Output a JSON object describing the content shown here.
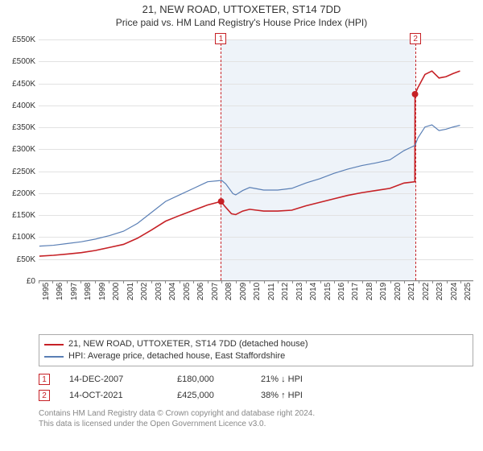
{
  "title": {
    "main": "21, NEW ROAD, UTTOXETER, ST14 7DD",
    "sub": "Price paid vs. HM Land Registry's House Price Index (HPI)"
  },
  "chart": {
    "type": "line",
    "background_color": "#ffffff",
    "grid_color": "#e2e2e2",
    "shade_color": "#eef3f9",
    "x": {
      "min": 1995,
      "max": 2025.9,
      "ticks": [
        1995,
        1996,
        1997,
        1998,
        1999,
        2000,
        2001,
        2002,
        2003,
        2004,
        2005,
        2006,
        2007,
        2008,
        2009,
        2010,
        2011,
        2012,
        2013,
        2014,
        2015,
        2016,
        2017,
        2018,
        2019,
        2020,
        2021,
        2022,
        2023,
        2024,
        2025
      ]
    },
    "y": {
      "min": 0,
      "max": 550000,
      "tick_step": 50000,
      "labels": [
        "£0",
        "£50K",
        "£100K",
        "£150K",
        "£200K",
        "£250K",
        "£300K",
        "£350K",
        "£400K",
        "£450K",
        "£500K",
        "£550K"
      ]
    },
    "shade_range": [
      2007.96,
      2021.79
    ],
    "series": [
      {
        "id": "price_paid",
        "label": "21, NEW ROAD, UTTOXETER, ST14 7DD (detached house)",
        "color": "#c62126",
        "width": 1.6,
        "data": [
          [
            1995,
            55000
          ],
          [
            1996,
            57000
          ],
          [
            1997,
            60000
          ],
          [
            1998,
            63000
          ],
          [
            1999,
            68000
          ],
          [
            2000,
            75000
          ],
          [
            2001,
            82000
          ],
          [
            2002,
            96000
          ],
          [
            2003,
            115000
          ],
          [
            2004,
            135000
          ],
          [
            2005,
            148000
          ],
          [
            2006,
            160000
          ],
          [
            2007,
            172000
          ],
          [
            2007.96,
            180000
          ],
          [
            2008.2,
            170000
          ],
          [
            2008.7,
            152000
          ],
          [
            2009,
            150000
          ],
          [
            2009.5,
            158000
          ],
          [
            2010,
            162000
          ],
          [
            2010.5,
            160000
          ],
          [
            2011,
            158000
          ],
          [
            2012,
            158000
          ],
          [
            2013,
            160000
          ],
          [
            2014,
            170000
          ],
          [
            2015,
            178000
          ],
          [
            2016,
            186000
          ],
          [
            2017,
            194000
          ],
          [
            2018,
            200000
          ],
          [
            2019,
            205000
          ],
          [
            2020,
            210000
          ],
          [
            2021,
            222000
          ],
          [
            2021.78,
            225000
          ],
          [
            2021.79,
            425000
          ],
          [
            2022,
            440000
          ],
          [
            2022.5,
            470000
          ],
          [
            2023,
            478000
          ],
          [
            2023.5,
            462000
          ],
          [
            2024,
            465000
          ],
          [
            2024.5,
            472000
          ],
          [
            2025,
            478000
          ]
        ]
      },
      {
        "id": "hpi",
        "label": "HPI: Average price, detached house, East Staffordshire",
        "color": "#5a7fb5",
        "width": 1.2,
        "data": [
          [
            1995,
            78000
          ],
          [
            1996,
            80000
          ],
          [
            1997,
            84000
          ],
          [
            1998,
            88000
          ],
          [
            1999,
            94000
          ],
          [
            2000,
            102000
          ],
          [
            2001,
            112000
          ],
          [
            2002,
            130000
          ],
          [
            2003,
            155000
          ],
          [
            2004,
            180000
          ],
          [
            2005,
            195000
          ],
          [
            2006,
            210000
          ],
          [
            2007,
            225000
          ],
          [
            2008,
            228000
          ],
          [
            2008.3,
            220000
          ],
          [
            2008.8,
            198000
          ],
          [
            2009,
            195000
          ],
          [
            2009.5,
            205000
          ],
          [
            2010,
            212000
          ],
          [
            2010.5,
            209000
          ],
          [
            2011,
            206000
          ],
          [
            2012,
            206000
          ],
          [
            2013,
            210000
          ],
          [
            2014,
            222000
          ],
          [
            2015,
            232000
          ],
          [
            2016,
            244000
          ],
          [
            2017,
            254000
          ],
          [
            2018,
            262000
          ],
          [
            2019,
            268000
          ],
          [
            2020,
            275000
          ],
          [
            2021,
            296000
          ],
          [
            2021.79,
            308000
          ],
          [
            2022,
            325000
          ],
          [
            2022.5,
            350000
          ],
          [
            2023,
            355000
          ],
          [
            2023.5,
            342000
          ],
          [
            2024,
            345000
          ],
          [
            2024.5,
            350000
          ],
          [
            2025,
            354000
          ]
        ]
      }
    ],
    "markers": [
      {
        "n": "1",
        "x": 2007.96,
        "y": 180000
      },
      {
        "n": "2",
        "x": 2021.79,
        "y": 425000
      }
    ]
  },
  "legend": {
    "items": [
      {
        "color": "#c62126",
        "label": "21, NEW ROAD, UTTOXETER, ST14 7DD (detached house)"
      },
      {
        "color": "#5a7fb5",
        "label": "HPI: Average price, detached house, East Staffordshire"
      }
    ]
  },
  "events": [
    {
      "n": "1",
      "date": "14-DEC-2007",
      "price": "£180,000",
      "delta": "21% ↓ HPI"
    },
    {
      "n": "2",
      "date": "14-OCT-2021",
      "price": "£425,000",
      "delta": "38% ↑ HPI"
    }
  ],
  "footer": {
    "line1": "Contains HM Land Registry data © Crown copyright and database right 2024.",
    "line2": "This data is licensed under the Open Government Licence v3.0."
  }
}
